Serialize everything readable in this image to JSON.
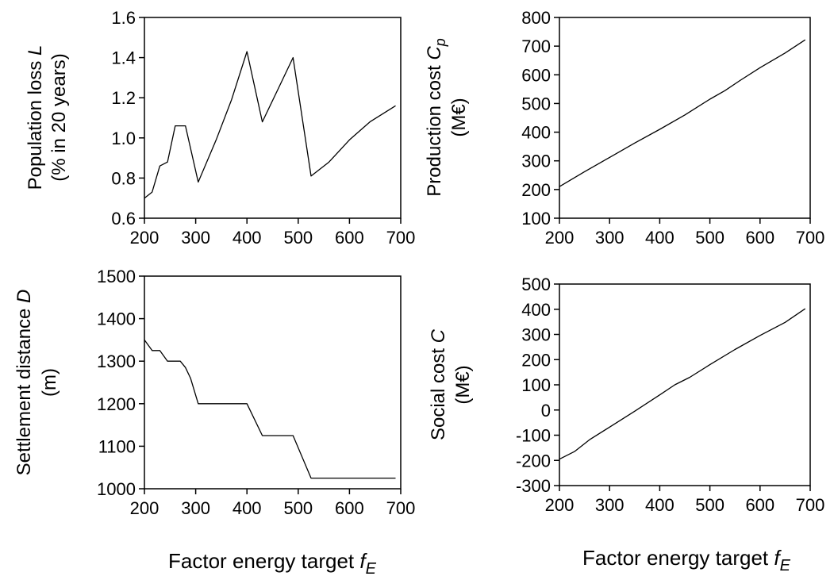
{
  "figure": {
    "xlabel_main": "Factor energy target ",
    "xlabel_italic": "f",
    "xlabel_sub": "E"
  },
  "chart_data": [
    {
      "type": "line",
      "id": "population-loss",
      "ylabel_lines": [
        {
          "text": "Population loss ",
          "italic": "L"
        },
        {
          "text": "(% in 20 years)",
          "italic": ""
        }
      ],
      "xlim": [
        200,
        700
      ],
      "ylim": [
        0.6,
        1.6
      ],
      "xticks": [
        200,
        300,
        400,
        500,
        600,
        700
      ],
      "yticks": [
        0.6,
        0.8,
        1.0,
        1.2,
        1.4,
        1.6
      ],
      "ytick_labels": [
        "0.6",
        "0.8",
        "1.0",
        "1.2",
        "1.4",
        "1.6"
      ],
      "x": [
        200,
        215,
        230,
        245,
        260,
        280,
        305,
        340,
        370,
        400,
        430,
        460,
        490,
        525,
        560,
        600,
        640,
        690
      ],
      "y": [
        0.7,
        0.73,
        0.86,
        0.88,
        1.06,
        1.06,
        0.78,
        0.99,
        1.19,
        1.43,
        1.08,
        1.24,
        1.4,
        0.81,
        0.88,
        0.99,
        1.08,
        1.16
      ]
    },
    {
      "type": "line",
      "id": "production-cost",
      "ylabel_lines": [
        {
          "text": "Production cost ",
          "italic": "C",
          "sub": "p"
        },
        {
          "text": "(M€)",
          "italic": ""
        }
      ],
      "xlim": [
        200,
        700
      ],
      "ylim": [
        100,
        800
      ],
      "xticks": [
        200,
        300,
        400,
        500,
        600,
        700
      ],
      "yticks": [
        100,
        200,
        300,
        400,
        500,
        600,
        700,
        800
      ],
      "ytick_labels": [
        "100",
        "200",
        "300",
        "400",
        "500",
        "600",
        "700",
        "800"
      ],
      "x": [
        200,
        250,
        300,
        350,
        400,
        450,
        500,
        530,
        560,
        600,
        650,
        690
      ],
      "y": [
        210,
        262,
        312,
        362,
        410,
        460,
        515,
        545,
        580,
        625,
        676,
        722
      ]
    },
    {
      "type": "line",
      "id": "settlement-distance",
      "ylabel_lines": [
        {
          "text": "Settlement distance ",
          "italic": "D"
        },
        {
          "text": "(m)",
          "italic": ""
        }
      ],
      "xlim": [
        200,
        700
      ],
      "ylim": [
        1000,
        1500
      ],
      "xticks": [
        200,
        300,
        400,
        500,
        600,
        700
      ],
      "yticks": [
        1000,
        1100,
        1200,
        1300,
        1400,
        1500
      ],
      "ytick_labels": [
        "1000",
        "1100",
        "1200",
        "1300",
        "1400",
        "1500"
      ],
      "x": [
        200,
        215,
        230,
        245,
        260,
        270,
        280,
        290,
        305,
        340,
        370,
        400,
        430,
        460,
        490,
        525,
        560,
        600,
        640,
        690
      ],
      "y": [
        1350,
        1325,
        1325,
        1300,
        1300,
        1300,
        1285,
        1260,
        1200,
        1200,
        1200,
        1200,
        1125,
        1125,
        1125,
        1025,
        1025,
        1025,
        1025,
        1025
      ]
    },
    {
      "type": "line",
      "id": "social-cost",
      "ylabel_lines": [
        {
          "text": "Social cost ",
          "italic": "C"
        },
        {
          "text": "(M€)",
          "italic": ""
        }
      ],
      "xlim": [
        200,
        700
      ],
      "ylim": [
        -300,
        500
      ],
      "xticks": [
        200,
        300,
        400,
        500,
        600,
        700
      ],
      "yticks": [
        -300,
        -200,
        -100,
        0,
        100,
        200,
        300,
        400,
        500
      ],
      "ytick_labels": [
        "-300",
        "-200",
        "-100",
        "0",
        "100",
        "200",
        "300",
        "400",
        "500"
      ],
      "x": [
        200,
        230,
        260,
        300,
        350,
        400,
        430,
        460,
        500,
        550,
        600,
        650,
        690
      ],
      "y": [
        -195,
        -165,
        -118,
        -68,
        -5,
        60,
        100,
        130,
        180,
        240,
        296,
        348,
        402
      ]
    }
  ]
}
